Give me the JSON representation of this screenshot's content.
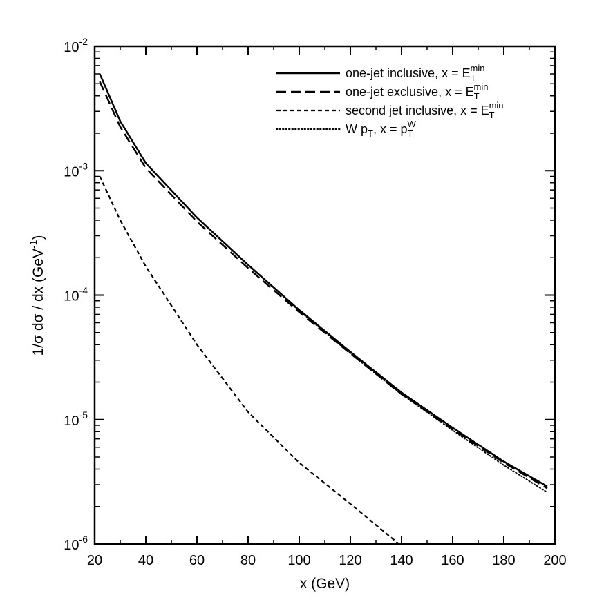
{
  "chart_data": {
    "type": "line",
    "title": "",
    "xlabel": "x (GeV)",
    "ylabel": "1/σ dσ / dx  (GeV",
    "ylabel_sup": "-1",
    "ylabel_close": ")",
    "xlim": [
      20,
      200
    ],
    "ylim": [
      1e-06,
      0.01
    ],
    "yscale": "log",
    "grid": false,
    "legend_position": "top-right",
    "x_ticks": [
      20,
      40,
      60,
      80,
      100,
      120,
      140,
      160,
      180,
      200
    ],
    "y_ticks": [
      {
        "value": 1e-06,
        "base": "10",
        "exp": "-6"
      },
      {
        "value": 1e-05,
        "base": "10",
        "exp": "-5"
      },
      {
        "value": 0.0001,
        "base": "10",
        "exp": "-4"
      },
      {
        "value": 0.001,
        "base": "10",
        "exp": "-3"
      },
      {
        "value": 0.01,
        "base": "10",
        "exp": "-2"
      }
    ],
    "series": [
      {
        "name": "one-jet inclusive, x = E",
        "name_sub": "T",
        "name_sup": "min",
        "style": "solid",
        "x": [
          22,
          30,
          40,
          60,
          80,
          100,
          120,
          140,
          160,
          180,
          197
        ],
        "y": [
          0.006,
          0.0025,
          0.00115,
          0.00042,
          0.000175,
          7.6e-05,
          3.5e-05,
          1.65e-05,
          8.6e-06,
          4.6e-06,
          2.9e-06
        ]
      },
      {
        "name": "one-jet exclusive, x = E",
        "name_sub": "T",
        "name_sup": "min",
        "style": "dashed",
        "x": [
          22,
          30,
          40,
          60,
          80,
          100,
          120,
          140,
          160,
          180,
          197
        ],
        "y": [
          0.0052,
          0.00225,
          0.00105,
          0.00039,
          0.000165,
          7.3e-05,
          3.4e-05,
          1.6e-05,
          8.4e-06,
          4.5e-06,
          2.8e-06
        ]
      },
      {
        "name": "second jet inclusive, x = E",
        "name_sub": "T",
        "name_sup": "min",
        "style": "short-dashed",
        "x": [
          22,
          30,
          40,
          60,
          80,
          100,
          120,
          139
        ],
        "y": [
          0.0009,
          0.0004,
          0.00017,
          4e-05,
          1.15e-05,
          4.5e-06,
          2.1e-06,
          1e-06
        ]
      },
      {
        "name": "W p",
        "name_sub": "T",
        "name_mid": ", x = p",
        "name_sub2": "T",
        "name_sup2": "W",
        "style": "dotted",
        "x": [
          22,
          30,
          40,
          60,
          80,
          100,
          120,
          140,
          160,
          180,
          197
        ],
        "y": [
          0.006,
          0.0025,
          0.00115,
          0.00042,
          0.000175,
          7.5e-05,
          3.4e-05,
          1.6e-05,
          8.2e-06,
          4.3e-06,
          2.6e-06
        ]
      }
    ]
  }
}
